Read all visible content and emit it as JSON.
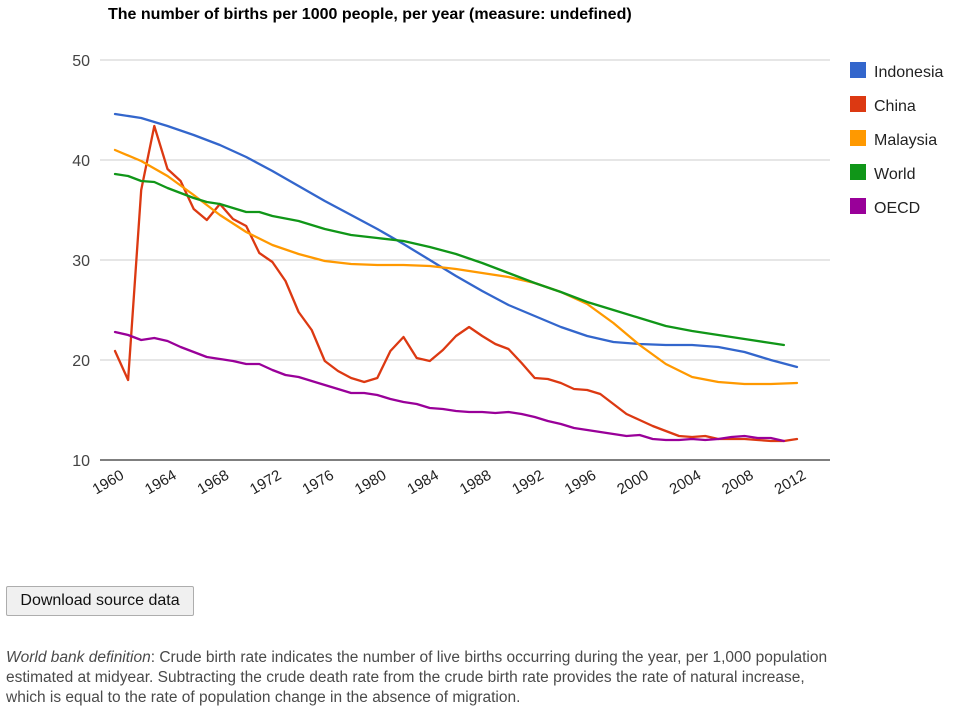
{
  "chart_data": {
    "type": "line",
    "title": "The number of births per 1000 people, per year (measure: undefined)",
    "ylim": [
      10,
      50
    ],
    "yticks": [
      10,
      20,
      30,
      40,
      50
    ],
    "xlim": [
      1960,
      2012
    ],
    "xticks": [
      1960,
      1964,
      1968,
      1972,
      1976,
      1980,
      1984,
      1988,
      1992,
      1996,
      2000,
      2004,
      2008,
      2012
    ],
    "grid": true,
    "legend_position": "right",
    "series": [
      {
        "name": "Indonesia",
        "color": "#3366cc",
        "x": [
          1960,
          1962,
          1964,
          1966,
          1968,
          1970,
          1972,
          1974,
          1976,
          1978,
          1980,
          1982,
          1984,
          1986,
          1988,
          1990,
          1992,
          1994,
          1996,
          1998,
          2000,
          2002,
          2004,
          2006,
          2008,
          2010,
          2012
        ],
        "y": [
          44.6,
          44.2,
          43.4,
          42.5,
          41.5,
          40.3,
          38.9,
          37.4,
          35.9,
          34.5,
          33.1,
          31.6,
          30.0,
          28.4,
          26.9,
          25.5,
          24.4,
          23.3,
          22.4,
          21.8,
          21.6,
          21.5,
          21.5,
          21.3,
          20.8,
          20.0,
          19.3
        ]
      },
      {
        "name": "China",
        "color": "#dc3912",
        "x": [
          1960,
          1961,
          1962,
          1963,
          1964,
          1965,
          1966,
          1967,
          1968,
          1969,
          1970,
          1971,
          1972,
          1973,
          1974,
          1975,
          1976,
          1977,
          1978,
          1979,
          1980,
          1981,
          1982,
          1983,
          1984,
          1985,
          1986,
          1987,
          1988,
          1989,
          1990,
          1991,
          1992,
          1993,
          1994,
          1995,
          1996,
          1997,
          1998,
          1999,
          2000,
          2001,
          2002,
          2003,
          2004,
          2005,
          2006,
          2007,
          2008,
          2009,
          2010,
          2011,
          2012
        ],
        "y": [
          20.9,
          18.0,
          37.0,
          43.4,
          39.1,
          37.9,
          35.1,
          34.0,
          35.6,
          34.1,
          33.4,
          30.7,
          29.8,
          27.9,
          24.8,
          23.0,
          19.9,
          18.9,
          18.2,
          17.8,
          18.2,
          20.9,
          22.3,
          20.2,
          19.9,
          21.0,
          22.4,
          23.3,
          22.4,
          21.6,
          21.1,
          19.7,
          18.2,
          18.1,
          17.7,
          17.1,
          17.0,
          16.6,
          15.6,
          14.6,
          14.0,
          13.4,
          12.9,
          12.4,
          12.3,
          12.4,
          12.1,
          12.1,
          12.1,
          12.0,
          11.9,
          11.9,
          12.1
        ]
      },
      {
        "name": "Malaysia",
        "color": "#ff9900",
        "x": [
          1960,
          1962,
          1964,
          1966,
          1968,
          1970,
          1972,
          1974,
          1976,
          1978,
          1980,
          1982,
          1984,
          1986,
          1988,
          1990,
          1992,
          1994,
          1996,
          1998,
          2000,
          2002,
          2004,
          2006,
          2008,
          2010,
          2012
        ],
        "y": [
          41.0,
          39.9,
          38.4,
          36.5,
          34.5,
          32.8,
          31.5,
          30.6,
          29.9,
          29.6,
          29.5,
          29.5,
          29.4,
          29.1,
          28.7,
          28.3,
          27.7,
          26.8,
          25.6,
          23.7,
          21.5,
          19.6,
          18.3,
          17.8,
          17.6,
          17.6,
          17.7
        ]
      },
      {
        "name": "World",
        "color": "#109618",
        "x": [
          1960,
          1961,
          1962,
          1963,
          1964,
          1965,
          1966,
          1967,
          1968,
          1969,
          1970,
          1971,
          1972,
          1974,
          1976,
          1978,
          1980,
          1982,
          1984,
          1986,
          1988,
          1990,
          1992,
          1994,
          1996,
          1998,
          2000,
          2002,
          2004,
          2006,
          2008,
          2010,
          2011
        ],
        "y": [
          38.6,
          38.4,
          37.9,
          37.8,
          37.2,
          36.7,
          36.2,
          35.8,
          35.6,
          35.2,
          34.8,
          34.8,
          34.4,
          33.9,
          33.1,
          32.5,
          32.2,
          31.9,
          31.3,
          30.6,
          29.7,
          28.7,
          27.7,
          26.8,
          25.8,
          25.0,
          24.2,
          23.4,
          22.9,
          22.5,
          22.1,
          21.7,
          21.5
        ]
      },
      {
        "name": "OECD",
        "color": "#990099",
        "x": [
          1960,
          1961,
          1962,
          1963,
          1964,
          1965,
          1966,
          1967,
          1968,
          1969,
          1970,
          1971,
          1972,
          1973,
          1974,
          1975,
          1976,
          1977,
          1978,
          1979,
          1980,
          1981,
          1982,
          1983,
          1984,
          1985,
          1986,
          1987,
          1988,
          1989,
          1990,
          1991,
          1992,
          1993,
          1994,
          1995,
          1996,
          1997,
          1998,
          1999,
          2000,
          2001,
          2002,
          2003,
          2004,
          2005,
          2006,
          2007,
          2008,
          2009,
          2010,
          2011
        ],
        "y": [
          22.8,
          22.5,
          22.0,
          22.2,
          21.9,
          21.3,
          20.8,
          20.3,
          20.1,
          19.9,
          19.6,
          19.6,
          19.0,
          18.5,
          18.3,
          17.9,
          17.5,
          17.1,
          16.7,
          16.7,
          16.5,
          16.1,
          15.8,
          15.6,
          15.2,
          15.1,
          14.9,
          14.8,
          14.8,
          14.7,
          14.8,
          14.6,
          14.3,
          13.9,
          13.6,
          13.2,
          13.0,
          12.8,
          12.6,
          12.4,
          12.5,
          12.1,
          12.0,
          12.0,
          12.1,
          12.0,
          12.1,
          12.3,
          12.4,
          12.2,
          12.2,
          11.9
        ]
      }
    ]
  },
  "download_button": {
    "label": "Download source data"
  },
  "definition": {
    "lead": "World bank definition",
    "text": ": Crude birth rate indicates the number of live births occurring during the year, per 1,000 population estimated at midyear. Subtracting the crude death rate from the crude birth rate provides the rate of natural increase, which is equal to the rate of population change in the absence of migration."
  }
}
